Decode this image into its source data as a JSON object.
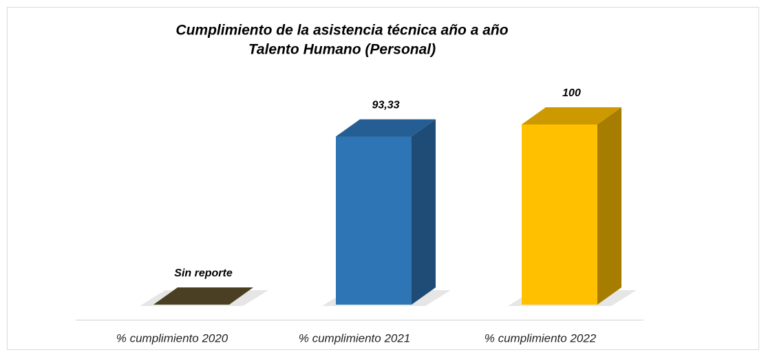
{
  "chart_data": {
    "type": "bar3d",
    "title": "Cumplimiento de la asistencia técnica año a año",
    "subtitle": "Talento Humano (Personal)",
    "categories": [
      "% cumplimiento 2020",
      "% cumplimiento 2021",
      "% cumplimiento 2022"
    ],
    "values": [
      null,
      93.33,
      100
    ],
    "value_labels": [
      "Sin reporte",
      "93,33",
      "100"
    ],
    "colors": [
      "#4a3f22",
      "#2e75b6",
      "#ffc000"
    ]
  }
}
